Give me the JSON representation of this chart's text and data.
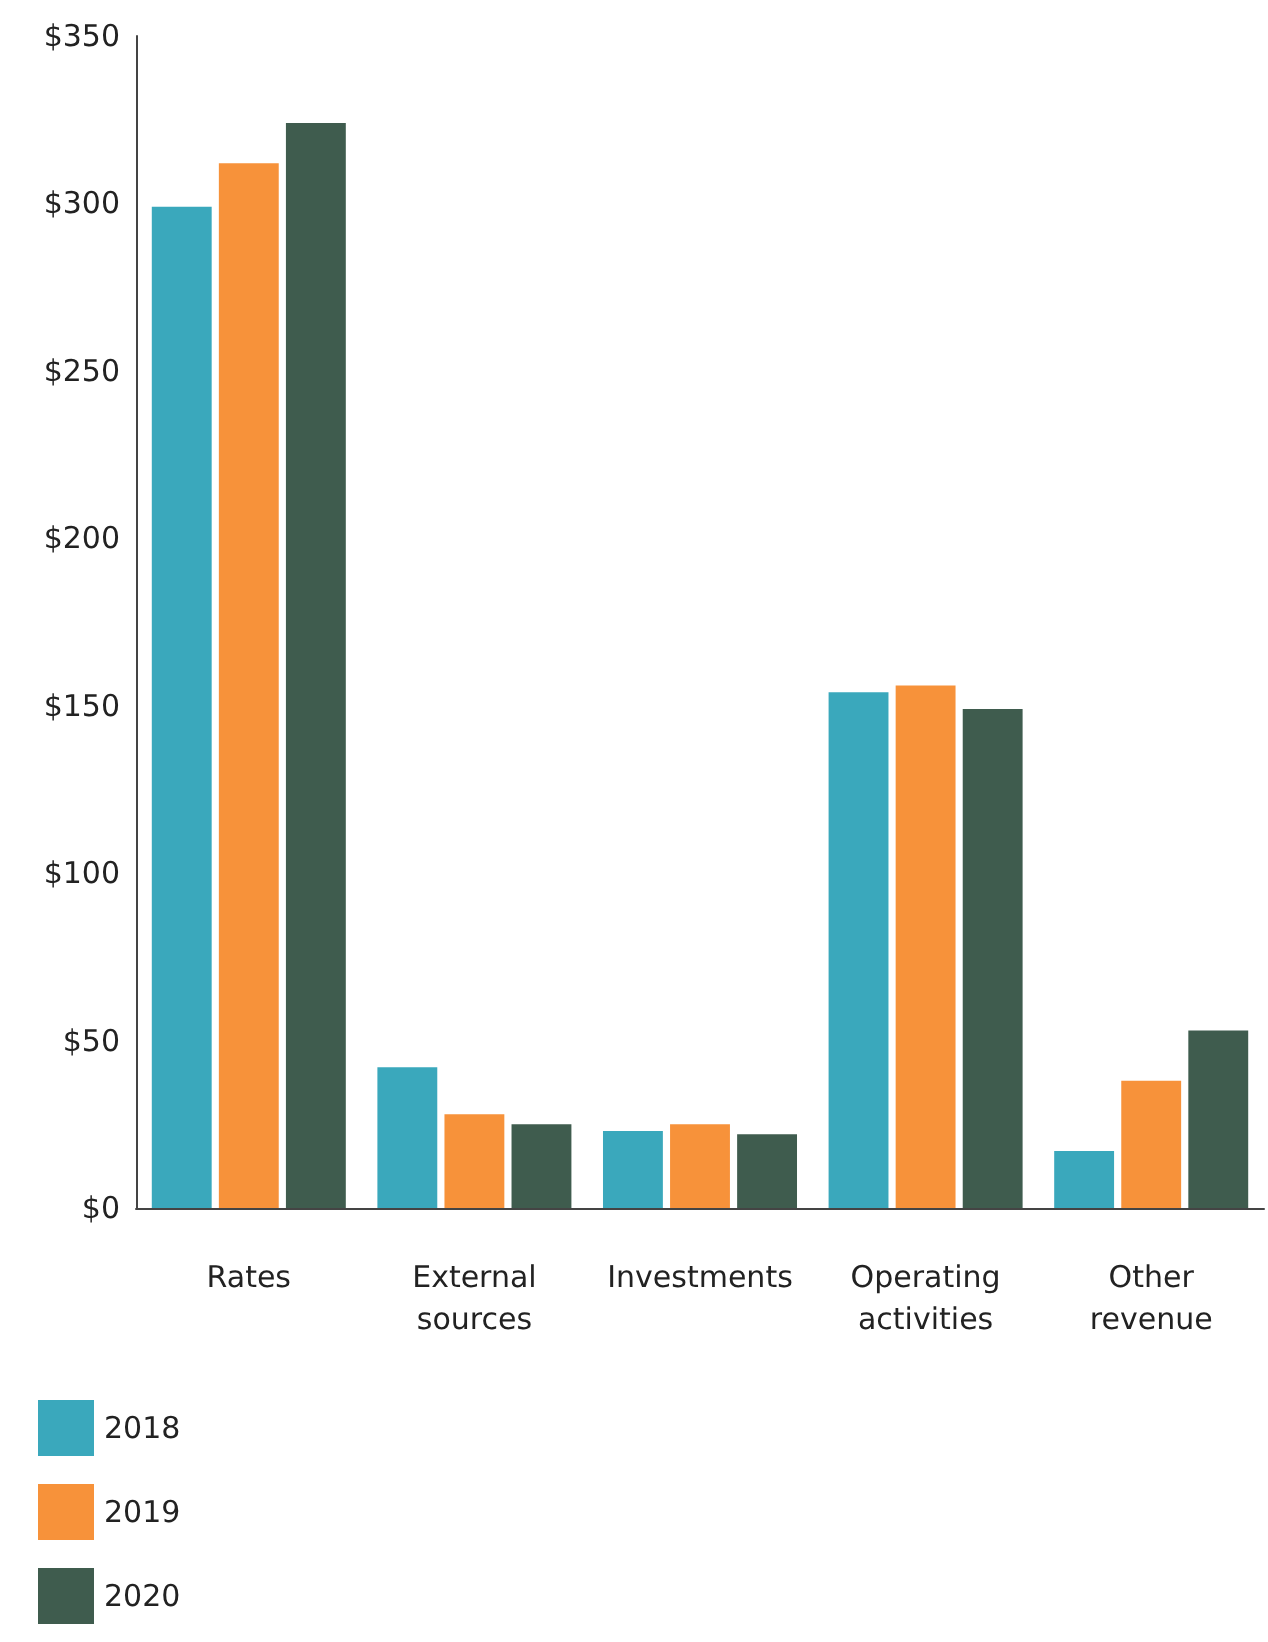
{
  "chart_data": {
    "type": "bar",
    "categories": [
      "Rates",
      "External\nsources",
      "Investments",
      "Operating\nactivities",
      "Other\nrevenue"
    ],
    "series": [
      {
        "name": "2018",
        "color": "#3aa8bc",
        "values": [
          299,
          42,
          23,
          154,
          17
        ]
      },
      {
        "name": "2019",
        "color": "#f7923a",
        "values": [
          312,
          28,
          25,
          156,
          38
        ]
      },
      {
        "name": "2020",
        "color": "#3f5c4e",
        "values": [
          324,
          25,
          22,
          149,
          53
        ]
      }
    ],
    "ylim": [
      0,
      350
    ],
    "yticks": [
      {
        "value": 0,
        "label": "$0"
      },
      {
        "value": 50,
        "label": "$50"
      },
      {
        "value": 100,
        "label": "$100"
      },
      {
        "value": 150,
        "label": "$150"
      },
      {
        "value": 200,
        "label": "$200"
      },
      {
        "value": 250,
        "label": "$250"
      },
      {
        "value": 300,
        "label": "$300"
      },
      {
        "value": 350,
        "label": "$350"
      }
    ],
    "grid": false,
    "legend": "bottom left"
  }
}
